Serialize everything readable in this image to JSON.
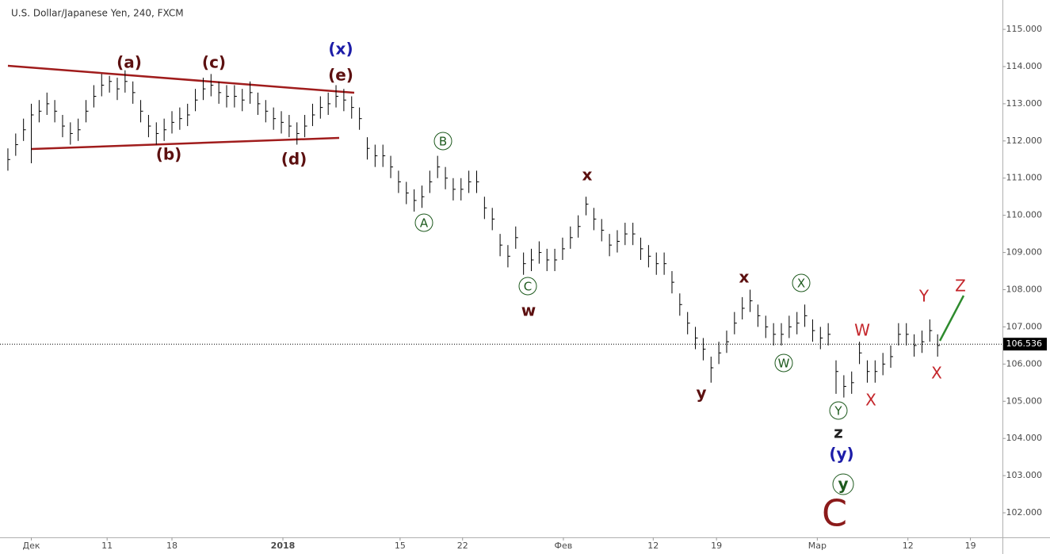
{
  "chart_data": {
    "type": "ohlc",
    "title": "U.S. Dollar/Japanese Yen, 240, FXCM",
    "bar_color": "#000000",
    "x": [
      0,
      1,
      2,
      3,
      4,
      5,
      6,
      7,
      8,
      9,
      10,
      11,
      12,
      13,
      14,
      15,
      16,
      17,
      18,
      19,
      20,
      21,
      22,
      23,
      24,
      25,
      26,
      27,
      28,
      29,
      30,
      31,
      32,
      33,
      34,
      35,
      36,
      37,
      38,
      39,
      40,
      41,
      42,
      43,
      44,
      45,
      46,
      47,
      48,
      49,
      50,
      51,
      52,
      53,
      54,
      55,
      56,
      57,
      58,
      59,
      60,
      61,
      62,
      63,
      64,
      65,
      66,
      67,
      68,
      69,
      70,
      71,
      72,
      73,
      74,
      75,
      76,
      77,
      78,
      79,
      80,
      81,
      82,
      83,
      84,
      85,
      86,
      87,
      88,
      89,
      90,
      91,
      92,
      93,
      94,
      95,
      96,
      97,
      98,
      99,
      100,
      101,
      102,
      103,
      104,
      105,
      106,
      107,
      108,
      109,
      110,
      111,
      112,
      113,
      114,
      115,
      116,
      117,
      118,
      119
    ],
    "high": [
      111.8,
      112.2,
      112.6,
      113.0,
      113.1,
      113.3,
      113.1,
      112.7,
      112.5,
      112.6,
      113.1,
      113.5,
      113.8,
      113.75,
      113.7,
      113.9,
      113.6,
      113.1,
      112.7,
      112.5,
      112.6,
      112.8,
      112.9,
      113.0,
      113.4,
      113.7,
      113.8,
      113.6,
      113.5,
      113.5,
      113.4,
      113.6,
      113.3,
      113.1,
      112.9,
      112.8,
      112.7,
      112.5,
      112.7,
      113.0,
      113.2,
      113.3,
      113.5,
      113.4,
      113.2,
      112.9,
      112.1,
      111.9,
      111.9,
      111.6,
      111.2,
      110.9,
      110.7,
      110.8,
      111.2,
      111.6,
      111.3,
      111.0,
      111.0,
      111.2,
      111.2,
      110.5,
      110.2,
      109.5,
      109.2,
      109.7,
      109.0,
      109.1,
      109.3,
      109.1,
      109.1,
      109.4,
      109.7,
      110.0,
      110.5,
      110.2,
      109.9,
      109.5,
      109.6,
      109.8,
      109.8,
      109.4,
      109.2,
      109.0,
      109.0,
      108.5,
      107.9,
      107.4,
      107.0,
      106.7,
      106.2,
      106.6,
      106.9,
      107.4,
      107.8,
      108.0,
      107.6,
      107.3,
      107.1,
      107.1,
      107.3,
      107.4,
      107.6,
      107.2,
      107.0,
      107.1,
      106.1,
      105.7,
      105.8,
      106.6,
      106.1,
      106.1,
      106.3,
      106.5,
      107.1,
      107.1,
      106.8,
      106.9,
      107.2,
      106.8
    ],
    "low": [
      111.2,
      111.6,
      112.0,
      111.4,
      112.5,
      112.7,
      112.5,
      112.1,
      111.9,
      112.0,
      112.5,
      112.9,
      113.2,
      113.3,
      113.1,
      113.3,
      113.0,
      112.5,
      112.1,
      111.9,
      112.0,
      112.2,
      112.3,
      112.4,
      112.8,
      113.1,
      113.2,
      113.0,
      112.9,
      112.9,
      112.8,
      113.0,
      112.7,
      112.5,
      112.3,
      112.2,
      112.1,
      111.9,
      112.1,
      112.4,
      112.6,
      112.7,
      112.9,
      112.8,
      112.6,
      112.3,
      111.5,
      111.3,
      111.3,
      111.0,
      110.6,
      110.3,
      110.1,
      110.2,
      110.6,
      111.0,
      110.7,
      110.4,
      110.4,
      110.6,
      110.6,
      109.9,
      109.6,
      108.9,
      108.6,
      109.1,
      108.4,
      108.5,
      108.7,
      108.5,
      108.5,
      108.8,
      109.1,
      109.4,
      110.0,
      109.6,
      109.3,
      108.9,
      109.0,
      109.2,
      109.2,
      108.8,
      108.6,
      108.4,
      108.4,
      107.9,
      107.3,
      106.8,
      106.4,
      106.1,
      105.5,
      106.0,
      106.3,
      106.8,
      107.2,
      107.4,
      107.0,
      106.7,
      106.5,
      106.5,
      106.7,
      106.8,
      107.0,
      106.6,
      106.4,
      106.5,
      105.2,
      105.1,
      105.2,
      106.0,
      105.5,
      105.5,
      105.7,
      105.9,
      106.5,
      106.5,
      106.2,
      106.3,
      106.6,
      106.2
    ],
    "close": [
      111.5,
      111.9,
      112.3,
      112.7,
      112.8,
      113.0,
      112.8,
      112.4,
      112.2,
      112.3,
      112.8,
      113.2,
      113.5,
      113.6,
      113.4,
      113.6,
      113.3,
      112.8,
      112.4,
      112.2,
      112.3,
      112.5,
      112.6,
      112.7,
      113.1,
      113.4,
      113.5,
      113.3,
      113.2,
      113.2,
      113.1,
      113.3,
      113.0,
      112.8,
      112.6,
      112.5,
      112.4,
      112.2,
      112.4,
      112.7,
      112.9,
      113.0,
      113.2,
      113.1,
      112.9,
      112.6,
      111.8,
      111.6,
      111.6,
      111.3,
      110.9,
      110.6,
      110.4,
      110.5,
      110.9,
      111.3,
      111.0,
      110.7,
      110.7,
      110.9,
      110.9,
      110.2,
      109.9,
      109.2,
      108.9,
      109.4,
      108.7,
      108.8,
      109.0,
      108.8,
      108.8,
      109.1,
      109.4,
      109.7,
      110.3,
      109.9,
      109.6,
      109.2,
      109.3,
      109.5,
      109.5,
      109.1,
      108.9,
      108.7,
      108.7,
      108.2,
      107.6,
      107.1,
      106.7,
      106.4,
      105.9,
      106.3,
      106.6,
      107.1,
      107.5,
      107.7,
      107.3,
      107.0,
      106.8,
      106.8,
      107.0,
      107.1,
      107.3,
      106.9,
      106.7,
      106.8,
      105.8,
      105.4,
      105.5,
      106.3,
      105.8,
      105.8,
      106.0,
      106.2,
      106.8,
      106.8,
      106.5,
      106.6,
      106.9,
      106.5
    ],
    "last_price": 106.536,
    "last_price_color": "#000000",
    "xlim": [
      -1.01,
      127.3
    ],
    "xticks": [
      {
        "value": 3.0,
        "label": "Дек"
      },
      {
        "value": 12.7,
        "label": "11"
      },
      {
        "value": 21.0,
        "label": "18"
      },
      {
        "value": 35.2,
        "label": "2018"
      },
      {
        "value": 50.2,
        "label": "15"
      },
      {
        "value": 58.2,
        "label": "22"
      },
      {
        "value": 71.1,
        "label": "Фев"
      },
      {
        "value": 82.6,
        "label": "12"
      },
      {
        "value": 90.7,
        "label": "19"
      },
      {
        "value": 103.6,
        "label": "Мар"
      },
      {
        "value": 115.2,
        "label": "12"
      },
      {
        "value": 123.2,
        "label": "19"
      }
    ],
    "ylim": [
      101.34,
      115.79
    ],
    "yticks": [
      {
        "value": 102,
        "label": "102.000"
      },
      {
        "value": 103,
        "label": "103.000"
      },
      {
        "value": 104,
        "label": "104.000"
      },
      {
        "value": 105,
        "label": "105.000"
      },
      {
        "value": 106,
        "label": "106.000"
      },
      {
        "value": 107,
        "label": "107.000"
      },
      {
        "value": 108,
        "label": "108.000"
      },
      {
        "value": 109,
        "label": "109.000"
      },
      {
        "value": 110,
        "label": "110.000"
      },
      {
        "value": 111,
        "label": "111.000"
      },
      {
        "value": 112,
        "label": "112.000"
      },
      {
        "value": 113,
        "label": "113.000"
      },
      {
        "value": 114,
        "label": "114.000"
      },
      {
        "value": 115,
        "label": "115.000"
      }
    ],
    "annotations": [
      "(a)",
      "(c)",
      "(x)",
      "(e)",
      "(b)",
      "(d)",
      "B",
      "A",
      "x",
      "C",
      "w",
      "x",
      "X",
      "W",
      "y",
      "W",
      "X",
      "Y",
      "Z",
      "X",
      "Y",
      "z",
      "(y)",
      "y",
      "C"
    ]
  }
}
